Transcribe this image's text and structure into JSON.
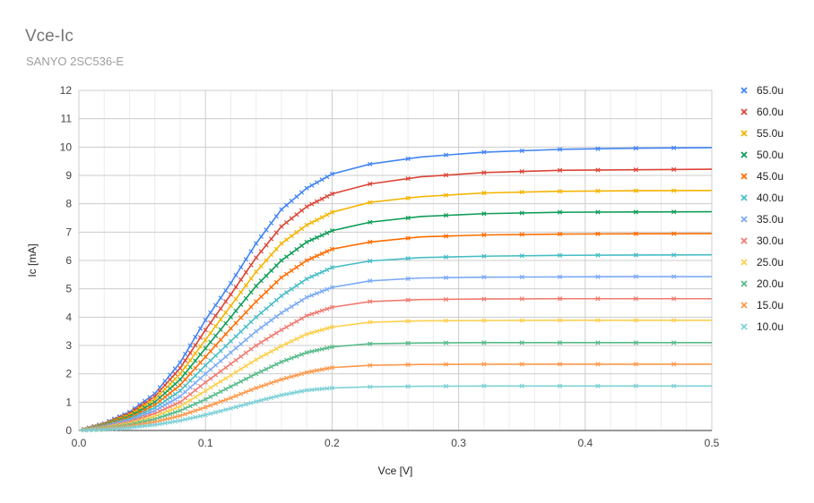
{
  "chart_data": {
    "type": "scatter",
    "title": "Vce-Ic",
    "subtitle": "SANYO 2SC536-E",
    "xlabel": "Vce [V]",
    "ylabel": "Ic [mA]",
    "xlim": [
      0,
      0.5
    ],
    "ylim": [
      0,
      12
    ],
    "xticks": [
      "0.0",
      "0.1",
      "0.2",
      "0.3",
      "0.4",
      "0.5"
    ],
    "yticks": [
      "0",
      "1",
      "2",
      "3",
      "4",
      "5",
      "6",
      "7",
      "8",
      "9",
      "10",
      "11",
      "12"
    ],
    "grid": true,
    "legend_position": "right",
    "series": [
      {
        "name": "65.0u",
        "color": "#4285f4",
        "points": [
          [
            0,
            0
          ],
          [
            0.02,
            0.25
          ],
          [
            0.04,
            0.65
          ],
          [
            0.06,
            1.3
          ],
          [
            0.08,
            2.4
          ],
          [
            0.1,
            3.9
          ],
          [
            0.12,
            5.2
          ],
          [
            0.14,
            6.6
          ],
          [
            0.16,
            7.8
          ],
          [
            0.18,
            8.55
          ],
          [
            0.2,
            9.05
          ],
          [
            0.23,
            9.4
          ],
          [
            0.27,
            9.65
          ],
          [
            0.32,
            9.82
          ],
          [
            0.38,
            9.92
          ],
          [
            0.44,
            9.96
          ],
          [
            0.5,
            9.98
          ]
        ]
      },
      {
        "name": "60.0u",
        "color": "#db4437",
        "points": [
          [
            0,
            0
          ],
          [
            0.02,
            0.23
          ],
          [
            0.04,
            0.6
          ],
          [
            0.06,
            1.2
          ],
          [
            0.08,
            2.2
          ],
          [
            0.1,
            3.55
          ],
          [
            0.12,
            4.8
          ],
          [
            0.14,
            6.1
          ],
          [
            0.16,
            7.2
          ],
          [
            0.18,
            7.9
          ],
          [
            0.2,
            8.35
          ],
          [
            0.23,
            8.7
          ],
          [
            0.27,
            8.95
          ],
          [
            0.32,
            9.1
          ],
          [
            0.38,
            9.18
          ],
          [
            0.44,
            9.2
          ],
          [
            0.5,
            9.22
          ]
        ]
      },
      {
        "name": "55.0u",
        "color": "#f4b400",
        "points": [
          [
            0,
            0
          ],
          [
            0.02,
            0.21
          ],
          [
            0.04,
            0.55
          ],
          [
            0.06,
            1.1
          ],
          [
            0.08,
            2.0
          ],
          [
            0.1,
            3.2
          ],
          [
            0.12,
            4.4
          ],
          [
            0.14,
            5.6
          ],
          [
            0.16,
            6.6
          ],
          [
            0.18,
            7.25
          ],
          [
            0.2,
            7.7
          ],
          [
            0.23,
            8.05
          ],
          [
            0.27,
            8.25
          ],
          [
            0.32,
            8.38
          ],
          [
            0.38,
            8.44
          ],
          [
            0.44,
            8.46
          ],
          [
            0.5,
            8.47
          ]
        ]
      },
      {
        "name": "50.0u",
        "color": "#0f9d58",
        "points": [
          [
            0,
            0
          ],
          [
            0.02,
            0.19
          ],
          [
            0.04,
            0.5
          ],
          [
            0.06,
            1.0
          ],
          [
            0.08,
            1.8
          ],
          [
            0.1,
            2.9
          ],
          [
            0.12,
            4.0
          ],
          [
            0.14,
            5.1
          ],
          [
            0.16,
            6.0
          ],
          [
            0.18,
            6.65
          ],
          [
            0.2,
            7.05
          ],
          [
            0.23,
            7.35
          ],
          [
            0.27,
            7.55
          ],
          [
            0.32,
            7.65
          ],
          [
            0.38,
            7.7
          ],
          [
            0.44,
            7.71
          ],
          [
            0.5,
            7.72
          ]
        ]
      },
      {
        "name": "45.0u",
        "color": "#ff6d01",
        "points": [
          [
            0,
            0
          ],
          [
            0.02,
            0.17
          ],
          [
            0.04,
            0.45
          ],
          [
            0.06,
            0.9
          ],
          [
            0.08,
            1.6
          ],
          [
            0.1,
            2.6
          ],
          [
            0.12,
            3.6
          ],
          [
            0.14,
            4.55
          ],
          [
            0.16,
            5.4
          ],
          [
            0.18,
            6.0
          ],
          [
            0.2,
            6.4
          ],
          [
            0.23,
            6.65
          ],
          [
            0.27,
            6.83
          ],
          [
            0.32,
            6.9
          ],
          [
            0.38,
            6.93
          ],
          [
            0.44,
            6.94
          ],
          [
            0.5,
            6.95
          ]
        ]
      },
      {
        "name": "40.0u",
        "color": "#46bdc6",
        "points": [
          [
            0,
            0
          ],
          [
            0.02,
            0.15
          ],
          [
            0.04,
            0.4
          ],
          [
            0.06,
            0.8
          ],
          [
            0.08,
            1.4
          ],
          [
            0.1,
            2.3
          ],
          [
            0.12,
            3.15
          ],
          [
            0.14,
            4.0
          ],
          [
            0.16,
            4.75
          ],
          [
            0.18,
            5.35
          ],
          [
            0.2,
            5.75
          ],
          [
            0.23,
            5.98
          ],
          [
            0.27,
            6.1
          ],
          [
            0.32,
            6.15
          ],
          [
            0.38,
            6.18
          ],
          [
            0.44,
            6.19
          ],
          [
            0.5,
            6.2
          ]
        ]
      },
      {
        "name": "35.0u",
        "color": "#7baaf7",
        "points": [
          [
            0,
            0
          ],
          [
            0.02,
            0.13
          ],
          [
            0.04,
            0.35
          ],
          [
            0.06,
            0.7
          ],
          [
            0.08,
            1.2
          ],
          [
            0.1,
            2.0
          ],
          [
            0.12,
            2.75
          ],
          [
            0.14,
            3.5
          ],
          [
            0.16,
            4.15
          ],
          [
            0.18,
            4.7
          ],
          [
            0.2,
            5.05
          ],
          [
            0.23,
            5.28
          ],
          [
            0.27,
            5.38
          ],
          [
            0.32,
            5.41
          ],
          [
            0.38,
            5.42
          ],
          [
            0.44,
            5.43
          ],
          [
            0.5,
            5.43
          ]
        ]
      },
      {
        "name": "30.0u",
        "color": "#f07b72",
        "points": [
          [
            0,
            0
          ],
          [
            0.02,
            0.11
          ],
          [
            0.04,
            0.3
          ],
          [
            0.06,
            0.6
          ],
          [
            0.08,
            1.0
          ],
          [
            0.1,
            1.7
          ],
          [
            0.12,
            2.35
          ],
          [
            0.14,
            3.0
          ],
          [
            0.16,
            3.55
          ],
          [
            0.18,
            4.05
          ],
          [
            0.2,
            4.35
          ],
          [
            0.23,
            4.55
          ],
          [
            0.27,
            4.62
          ],
          [
            0.32,
            4.64
          ],
          [
            0.38,
            4.65
          ],
          [
            0.44,
            4.65
          ],
          [
            0.5,
            4.65
          ]
        ]
      },
      {
        "name": "25.0u",
        "color": "#fcd04f",
        "points": [
          [
            0,
            0
          ],
          [
            0.02,
            0.09
          ],
          [
            0.04,
            0.25
          ],
          [
            0.06,
            0.5
          ],
          [
            0.08,
            0.85
          ],
          [
            0.1,
            1.4
          ],
          [
            0.12,
            1.95
          ],
          [
            0.14,
            2.5
          ],
          [
            0.16,
            2.98
          ],
          [
            0.18,
            3.4
          ],
          [
            0.2,
            3.65
          ],
          [
            0.23,
            3.82
          ],
          [
            0.27,
            3.87
          ],
          [
            0.32,
            3.88
          ],
          [
            0.38,
            3.89
          ],
          [
            0.44,
            3.89
          ],
          [
            0.5,
            3.89
          ]
        ]
      },
      {
        "name": "20.0u",
        "color": "#57bb8a",
        "points": [
          [
            0,
            0
          ],
          [
            0.02,
            0.07
          ],
          [
            0.04,
            0.2
          ],
          [
            0.06,
            0.4
          ],
          [
            0.08,
            0.7
          ],
          [
            0.1,
            1.1
          ],
          [
            0.12,
            1.55
          ],
          [
            0.14,
            2.0
          ],
          [
            0.16,
            2.42
          ],
          [
            0.18,
            2.75
          ],
          [
            0.2,
            2.95
          ],
          [
            0.23,
            3.06
          ],
          [
            0.27,
            3.09
          ],
          [
            0.32,
            3.1
          ],
          [
            0.38,
            3.1
          ],
          [
            0.44,
            3.1
          ],
          [
            0.5,
            3.1
          ]
        ]
      },
      {
        "name": "15.0u",
        "color": "#ff994d",
        "points": [
          [
            0,
            0
          ],
          [
            0.02,
            0.05
          ],
          [
            0.04,
            0.15
          ],
          [
            0.06,
            0.3
          ],
          [
            0.08,
            0.52
          ],
          [
            0.1,
            0.82
          ],
          [
            0.12,
            1.15
          ],
          [
            0.14,
            1.5
          ],
          [
            0.16,
            1.8
          ],
          [
            0.18,
            2.05
          ],
          [
            0.2,
            2.22
          ],
          [
            0.23,
            2.3
          ],
          [
            0.27,
            2.33
          ],
          [
            0.32,
            2.34
          ],
          [
            0.38,
            2.34
          ],
          [
            0.44,
            2.34
          ],
          [
            0.5,
            2.34
          ]
        ]
      },
      {
        "name": "10.0u",
        "color": "#7ed1d7",
        "points": [
          [
            0,
            0
          ],
          [
            0.02,
            0.03
          ],
          [
            0.04,
            0.1
          ],
          [
            0.06,
            0.2
          ],
          [
            0.08,
            0.35
          ],
          [
            0.1,
            0.55
          ],
          [
            0.12,
            0.78
          ],
          [
            0.14,
            1.02
          ],
          [
            0.16,
            1.25
          ],
          [
            0.18,
            1.42
          ],
          [
            0.2,
            1.5
          ],
          [
            0.23,
            1.54
          ],
          [
            0.27,
            1.56
          ],
          [
            0.32,
            1.57
          ],
          [
            0.38,
            1.57
          ],
          [
            0.44,
            1.57
          ],
          [
            0.5,
            1.57
          ]
        ]
      }
    ]
  }
}
